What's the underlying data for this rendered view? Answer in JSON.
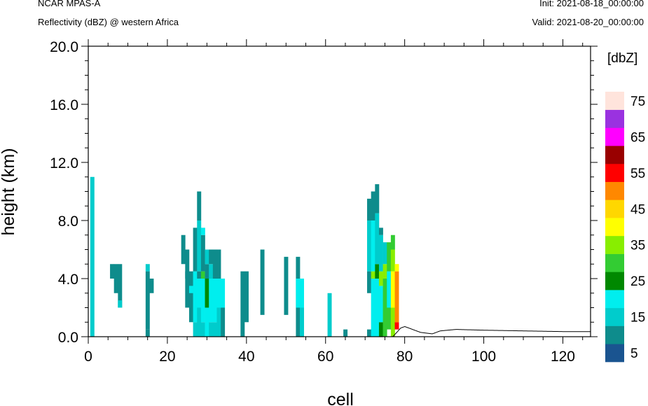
{
  "header": {
    "model": "NCAR MPAS-A",
    "field": "Reflectivity (dBZ) @ western Africa",
    "init": "Init: 2021-08-18_00:00:00",
    "valid": "Valid: 2021-08-20_00:00:00"
  },
  "chart_data": {
    "type": "heatmap",
    "title": "Reflectivity (dBZ) @ western Africa",
    "xlabel": "cell",
    "ylabel": "height (km)",
    "xlim": [
      0,
      127
    ],
    "ylim": [
      0,
      20
    ],
    "xticks": [
      "0",
      "20",
      "40",
      "60",
      "80",
      "100",
      "120"
    ],
    "yticks": [
      "0.0",
      "4.0",
      "8.0",
      "12.0",
      "16.0",
      "20.0"
    ],
    "cell_height_km": 0.5,
    "colorbar": {
      "unit": "[dbZ]",
      "levels": [
        5,
        10,
        15,
        20,
        25,
        30,
        35,
        40,
        45,
        50,
        55,
        60,
        65,
        70,
        75
      ],
      "labels": [
        "5",
        "15",
        "25",
        "35",
        "45",
        "55",
        "65",
        "75"
      ],
      "colors": [
        "#1a5490",
        "#0e8c8c",
        "#00cccc",
        "#00eeee",
        "#008800",
        "#33cc33",
        "#88ee00",
        "#ffff00",
        "#ffd700",
        "#ff8800",
        "#ff0000",
        "#990000",
        "#ff00ff",
        "#9a32e0",
        "#ffe4dc"
      ]
    },
    "columns": [
      {
        "x": 1,
        "cells": [
          [
            0,
            11,
            2
          ]
        ]
      },
      {
        "x": 6,
        "cells": [
          [
            4,
            5,
            1
          ]
        ]
      },
      {
        "x": 7,
        "cells": [
          [
            3,
            5,
            1
          ]
        ]
      },
      {
        "x": 8,
        "cells": [
          [
            2,
            5,
            1
          ],
          [
            2,
            2.5,
            2
          ]
        ]
      },
      {
        "x": 15,
        "cells": [
          [
            0,
            0.5,
            1
          ],
          [
            0.5,
            4.5,
            1
          ],
          [
            4.5,
            5,
            2
          ]
        ]
      },
      {
        "x": 16,
        "cells": [
          [
            3,
            4,
            1
          ]
        ]
      },
      {
        "x": 24,
        "cells": [
          [
            5,
            7,
            1
          ]
        ]
      },
      {
        "x": 25,
        "cells": [
          [
            2,
            6,
            1
          ],
          [
            4,
            4.5,
            1
          ]
        ]
      },
      {
        "x": 26,
        "cells": [
          [
            1,
            4.5,
            1
          ],
          [
            3,
            3.5,
            3
          ]
        ]
      },
      {
        "x": 27,
        "cells": [
          [
            0,
            1,
            2
          ],
          [
            1,
            4.5,
            3
          ],
          [
            4.5,
            7.5,
            1
          ]
        ]
      },
      {
        "x": 28,
        "cells": [
          [
            0,
            2,
            2
          ],
          [
            2,
            4,
            3
          ],
          [
            4,
            4.5,
            1
          ],
          [
            4.5,
            8,
            2
          ],
          [
            8,
            10,
            1
          ]
        ]
      },
      {
        "x": 29,
        "cells": [
          [
            0,
            1,
            2
          ],
          [
            1,
            4,
            3
          ],
          [
            4,
            4.5,
            5
          ],
          [
            4.5,
            7,
            1
          ],
          [
            7,
            7.5,
            3
          ]
        ]
      },
      {
        "x": 30,
        "cells": [
          [
            0,
            2,
            3
          ],
          [
            2,
            4,
            4
          ],
          [
            4,
            5,
            1
          ],
          [
            5,
            6,
            2
          ]
        ]
      },
      {
        "x": 31,
        "cells": [
          [
            0,
            1,
            2
          ],
          [
            1,
            4,
            3
          ],
          [
            4,
            5,
            2
          ],
          [
            5,
            6,
            1
          ]
        ]
      },
      {
        "x": 32,
        "cells": [
          [
            0,
            1,
            2
          ],
          [
            1,
            4,
            3
          ],
          [
            4,
            6,
            1
          ]
        ]
      },
      {
        "x": 33,
        "cells": [
          [
            0,
            2,
            2
          ],
          [
            2,
            4,
            3
          ],
          [
            4,
            6,
            1
          ]
        ]
      },
      {
        "x": 34,
        "cells": [
          [
            0,
            2,
            1
          ],
          [
            2,
            4,
            3
          ]
        ]
      },
      {
        "x": 39,
        "cells": [
          [
            0,
            2,
            1
          ],
          [
            2,
            4.5,
            1
          ]
        ]
      },
      {
        "x": 40,
        "cells": [
          [
            1,
            4.5,
            1
          ]
        ]
      },
      {
        "x": 44,
        "cells": [
          [
            1.5,
            6,
            1
          ]
        ]
      },
      {
        "x": 50,
        "cells": [
          [
            1.5,
            5.5,
            1
          ]
        ]
      },
      {
        "x": 53,
        "cells": [
          [
            0,
            5.5,
            1
          ],
          [
            2,
            4,
            3
          ]
        ]
      },
      {
        "x": 54,
        "cells": [
          [
            0,
            2,
            2
          ],
          [
            2,
            4,
            3
          ]
        ]
      },
      {
        "x": 61,
        "cells": [
          [
            0,
            3,
            2
          ]
        ]
      },
      {
        "x": 65,
        "cells": [
          [
            0,
            0.5,
            1
          ]
        ]
      },
      {
        "x": 71,
        "cells": [
          [
            0,
            0.5,
            1
          ],
          [
            3,
            4.5,
            1
          ],
          [
            4.5,
            8,
            2
          ],
          [
            8,
            9.5,
            1
          ]
        ]
      },
      {
        "x": 72,
        "cells": [
          [
            0,
            4,
            3
          ],
          [
            4,
            4.5,
            6
          ],
          [
            4.5,
            8,
            3
          ],
          [
            8,
            10,
            1
          ]
        ]
      },
      {
        "x": 73,
        "cells": [
          [
            0,
            4,
            3
          ],
          [
            4,
            5,
            4
          ],
          [
            5,
            8.5,
            2
          ],
          [
            8.5,
            10.5,
            1
          ]
        ]
      },
      {
        "x": 74,
        "cells": [
          [
            0,
            1,
            4
          ],
          [
            1,
            3.5,
            3
          ],
          [
            3.5,
            4.5,
            6
          ],
          [
            4.5,
            7,
            2
          ],
          [
            7,
            7.5,
            1
          ]
        ]
      },
      {
        "x": 75,
        "cells": [
          [
            0,
            4,
            5
          ],
          [
            4,
            5,
            6
          ],
          [
            5,
            6.5,
            2
          ]
        ]
      },
      {
        "x": 76,
        "cells": [
          [
            0.5,
            2,
            5
          ],
          [
            2,
            4.5,
            3
          ],
          [
            4.5,
            6.5,
            5
          ]
        ]
      },
      {
        "x": 77,
        "cells": [
          [
            0,
            2,
            6
          ],
          [
            2,
            4.5,
            7
          ],
          [
            4.5,
            6,
            6
          ],
          [
            6,
            7,
            5
          ]
        ]
      },
      {
        "x": 78,
        "cells": [
          [
            0.5,
            1,
            10
          ],
          [
            1,
            4.5,
            9
          ],
          [
            4.5,
            5,
            7
          ]
        ]
      }
    ],
    "terrain_km": [
      [
        0,
        0
      ],
      [
        77,
        0
      ],
      [
        78,
        0.3
      ],
      [
        79,
        0.6
      ],
      [
        80,
        0.7
      ],
      [
        82,
        0.5
      ],
      [
        84,
        0.3
      ],
      [
        87,
        0.2
      ],
      [
        89,
        0.4
      ],
      [
        93,
        0.5
      ],
      [
        100,
        0.45
      ],
      [
        110,
        0.4
      ],
      [
        120,
        0.35
      ],
      [
        127,
        0.35
      ]
    ]
  }
}
